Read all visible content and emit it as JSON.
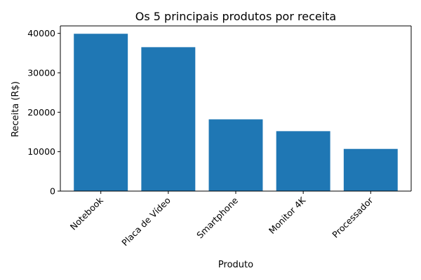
{
  "chart_data": {
    "type": "bar",
    "title": "Os 5 principais produtos por receita",
    "xlabel": "Produto",
    "ylabel": "Receita (R$)",
    "categories": [
      "Notebook",
      "Placa de Vídeo",
      "Smartphone",
      "Monitor 4K",
      "Processador"
    ],
    "values": [
      39900,
      36500,
      18200,
      15200,
      10700
    ],
    "ylim": [
      0,
      41895
    ],
    "yticks": [
      0,
      10000,
      20000,
      30000,
      40000
    ],
    "ytick_labels": [
      "0",
      "10000",
      "20000",
      "30000",
      "40000"
    ],
    "grid": false,
    "bar_color": "#1f77b4"
  }
}
